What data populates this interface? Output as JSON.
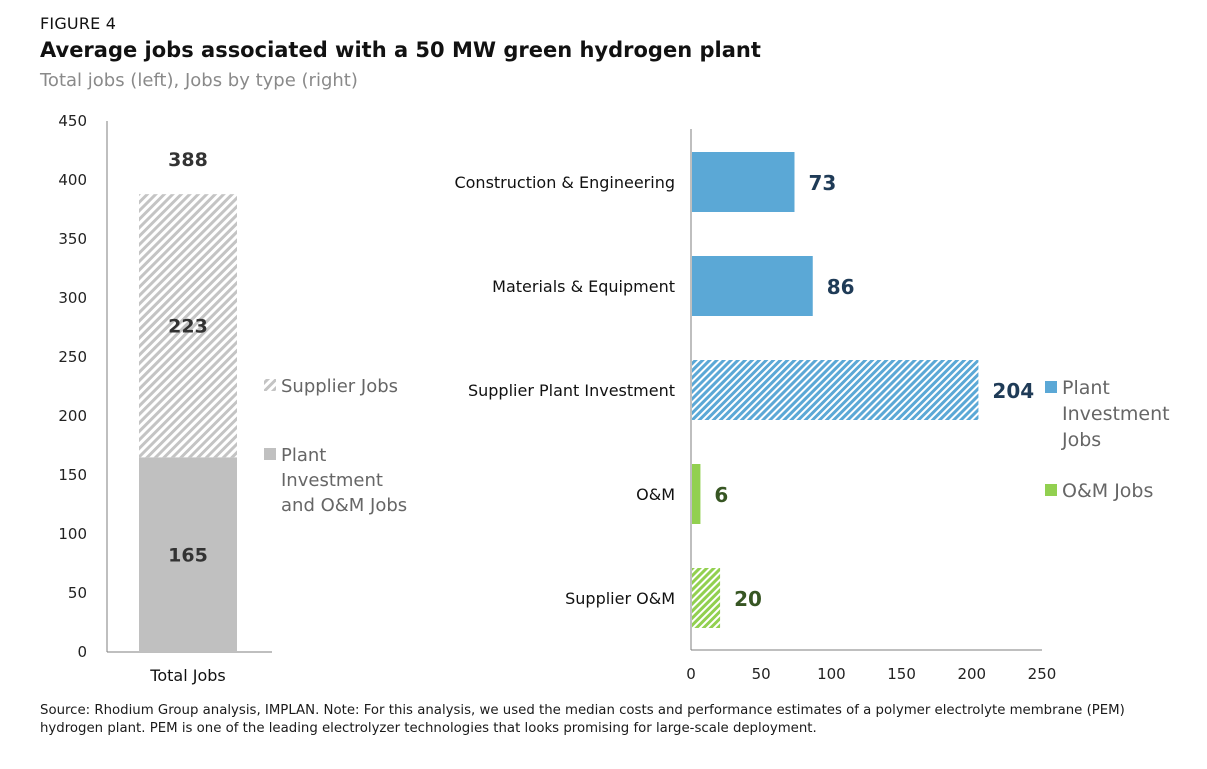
{
  "figure_label": "FIGURE 4",
  "title": "Average jobs associated with a 50 MW green hydrogen plant",
  "subtitle": "Total jobs (left), Jobs by type (right)",
  "source_note": "Source: Rhodium Group analysis, IMPLAN. Note: For this analysis, we used the median costs and performance estimates of a polymer electrolyte membrane (PEM) hydrogen plant. PEM is one of the leading electrolyzer technologies that looks promising for large-scale deployment.",
  "colors": {
    "plant_om_gray": "#c0c0c0",
    "supplier_hatch_gray": "#d2d2d2",
    "investment_blue": "#5ba8d6",
    "om_green": "#92d050",
    "blue_label": "#1f3b57",
    "green_label": "#375623",
    "legend_text": "#666666"
  },
  "chart_data": [
    {
      "type": "bar",
      "stacked": true,
      "categories": [
        "Total Jobs"
      ],
      "series": [
        {
          "name": "Plant Investment and O&M Jobs",
          "values": [
            165
          ],
          "pattern": "solid",
          "color": "#c0c0c0"
        },
        {
          "name": "Supplier Jobs",
          "values": [
            223
          ],
          "pattern": "hatched",
          "color": "#d2d2d2"
        }
      ],
      "total_labels": [
        "388"
      ],
      "data_labels": [
        "165",
        "223"
      ],
      "ylim": [
        0,
        450
      ],
      "yticks": [
        "0",
        "50",
        "100",
        "150",
        "200",
        "250",
        "300",
        "350",
        "400",
        "450"
      ],
      "legend": [
        {
          "label_lines": [
            "Supplier Jobs"
          ],
          "pattern": "hatched"
        },
        {
          "label_lines": [
            "Plant",
            "Investment",
            "and O&M Jobs"
          ],
          "pattern": "solid"
        }
      ],
      "legend_placement": "right",
      "grid": false
    },
    {
      "type": "bar",
      "orientation": "horizontal",
      "categories": [
        "Construction & Engineering",
        "Materials & Equipment",
        "Supplier Plant Investment",
        "O&M",
        "Supplier O&M"
      ],
      "values": [
        73,
        86,
        204,
        6,
        20
      ],
      "data_labels": [
        "73",
        "86",
        "204",
        "6",
        "20"
      ],
      "groups": [
        "Plant Investment Jobs",
        "Plant Investment Jobs",
        "Plant Investment Jobs",
        "O&M Jobs",
        "O&M Jobs"
      ],
      "patterns": [
        "solid",
        "solid",
        "hatched",
        "solid",
        "hatched"
      ],
      "xlim": [
        0,
        250
      ],
      "xticks": [
        "0",
        "50",
        "100",
        "150",
        "200",
        "250"
      ],
      "legend": [
        {
          "label_lines": [
            "Plant",
            "Investment",
            "Jobs"
          ],
          "color": "#5ba8d6"
        },
        {
          "label_lines": [
            "O&M Jobs"
          ],
          "color": "#92d050"
        }
      ],
      "legend_placement": "right",
      "grid": false
    }
  ]
}
